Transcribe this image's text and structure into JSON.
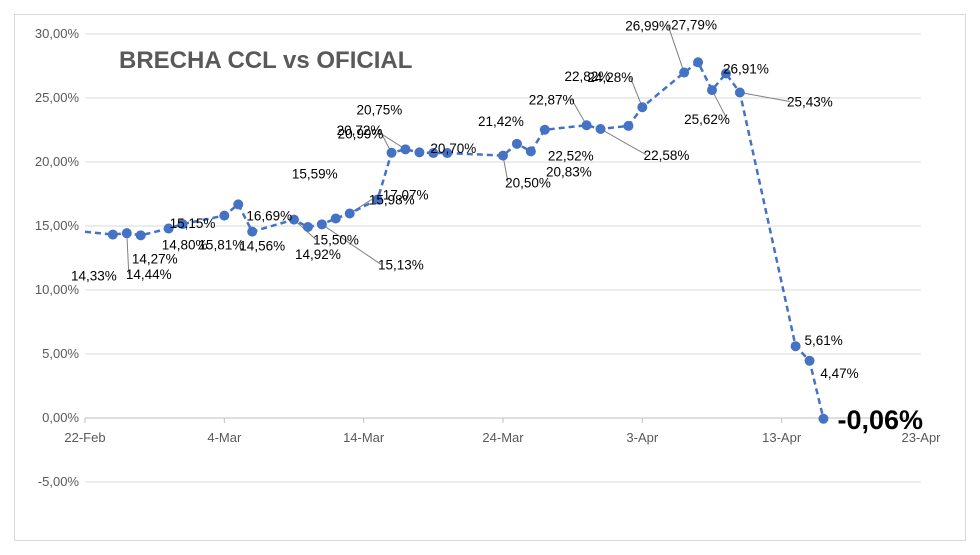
{
  "chart_data": {
    "type": "line",
    "title": "BRECHA CCL vs OFICIAL",
    "xlabel": "",
    "ylabel": "",
    "x_tick_labels": [
      "22-Feb",
      "4-Mar",
      "14-Mar",
      "24-Mar",
      "3-Apr",
      "13-Apr",
      "23-Apr"
    ],
    "y_tick_labels": [
      "-5,00%",
      "0,00%",
      "5,00%",
      "10,00%",
      "15,00%",
      "20,00%",
      "25,00%",
      "30,00%"
    ],
    "xlim": [
      "2022-02-22",
      "2022-04-23"
    ],
    "ylim": [
      -5,
      30
    ],
    "grid": "horizontal",
    "legend": "none",
    "line_color": "#4472c4",
    "series": [
      {
        "name": "",
        "x": [
          "2022-02-24",
          "2022-02-25",
          "2022-02-26",
          "2022-02-28",
          "2022-03-01",
          "2022-03-04",
          "2022-03-05",
          "2022-03-06",
          "2022-03-09",
          "2022-03-10",
          "2022-03-11",
          "2022-03-12",
          "2022-03-13",
          "2022-03-15",
          "2022-03-16",
          "2022-03-17",
          "2022-03-18",
          "2022-03-19",
          "2022-03-20",
          "2022-03-24",
          "2022-03-25",
          "2022-03-26",
          "2022-03-27",
          "2022-03-30",
          "2022-03-31",
          "2022-04-02",
          "2022-04-03",
          "2022-04-06",
          "2022-04-07",
          "2022-04-08",
          "2022-04-09",
          "2022-04-10",
          "2022-04-14",
          "2022-04-15",
          "2022-04-16"
        ],
        "values": [
          14.33,
          14.44,
          14.27,
          14.8,
          15.15,
          15.81,
          16.69,
          14.56,
          15.5,
          14.92,
          15.13,
          15.59,
          15.98,
          17.07,
          20.72,
          20.99,
          20.75,
          20.7,
          20.7,
          20.5,
          21.42,
          20.83,
          22.52,
          22.87,
          22.58,
          22.82,
          24.28,
          26.99,
          27.79,
          25.62,
          26.91,
          25.43,
          5.61,
          4.47,
          -0.06
        ]
      }
    ],
    "lead_in": {
      "x": "2022-02-22",
      "y": 14.55
    },
    "data_labels": [
      {
        "text": "14,33%",
        "x": "2022-02-24",
        "y": 14.33
      },
      {
        "text": "14,44%",
        "x": "2022-02-25",
        "y": 14.44
      },
      {
        "text": "14,27%",
        "x": "2022-02-26",
        "y": 14.27
      },
      {
        "text": "14,80%",
        "x": "2022-02-28",
        "y": 14.8
      },
      {
        "text": "15,15%",
        "x": "2022-03-01",
        "y": 15.15
      },
      {
        "text": "15,81%",
        "x": "2022-03-04",
        "y": 15.81
      },
      {
        "text": "16,69%",
        "x": "2022-03-05",
        "y": 16.69
      },
      {
        "text": "14,56%",
        "x": "2022-03-06",
        "y": 14.56
      },
      {
        "text": "15,50%",
        "x": "2022-03-09",
        "y": 15.5
      },
      {
        "text": "14,92%",
        "x": "2022-03-10",
        "y": 14.92
      },
      {
        "text": "15,13%",
        "x": "2022-03-11",
        "y": 15.13
      },
      {
        "text": "15,59%",
        "x": "2022-03-12",
        "y": 15.59
      },
      {
        "text": "15,98%",
        "x": "2022-03-13",
        "y": 15.98
      },
      {
        "text": "17,07%",
        "x": "2022-03-15",
        "y": 17.07
      },
      {
        "text": "20,72%",
        "x": "2022-03-16",
        "y": 20.72
      },
      {
        "text": "20,99%",
        "x": "2022-03-17",
        "y": 20.99
      },
      {
        "text": "20,75%",
        "x": "2022-03-18",
        "y": 20.75
      },
      {
        "text": "20,70%",
        "x": "2022-03-19",
        "y": 20.7
      },
      {
        "text": "20,50%",
        "x": "2022-03-24",
        "y": 20.5
      },
      {
        "text": "21,42%",
        "x": "2022-03-25",
        "y": 21.42
      },
      {
        "text": "20,83%",
        "x": "2022-03-26",
        "y": 20.83
      },
      {
        "text": "22,52%",
        "x": "2022-03-27",
        "y": 22.52
      },
      {
        "text": "22,87%",
        "x": "2022-03-30",
        "y": 22.87
      },
      {
        "text": "22,58%",
        "x": "2022-03-31",
        "y": 22.58
      },
      {
        "text": "22,82%",
        "x": "2022-04-02",
        "y": 22.82
      },
      {
        "text": "24,28%",
        "x": "2022-04-03",
        "y": 24.28
      },
      {
        "text": "26,99%",
        "x": "2022-04-06",
        "y": 26.99
      },
      {
        "text": "27,79%",
        "x": "2022-04-07",
        "y": 27.79
      },
      {
        "text": "25,62%",
        "x": "2022-04-08",
        "y": 25.62
      },
      {
        "text": "26,91%",
        "x": "2022-04-09",
        "y": 26.91
      },
      {
        "text": "25,43%",
        "x": "2022-04-10",
        "y": 25.43
      },
      {
        "text": "5,61%",
        "x": "2022-04-14",
        "y": 5.61
      },
      {
        "text": "4,47%",
        "x": "2022-04-15",
        "y": 4.47
      },
      {
        "text": "-0,06%",
        "x": "2022-04-16",
        "y": -0.06,
        "emphasis": true
      }
    ]
  }
}
